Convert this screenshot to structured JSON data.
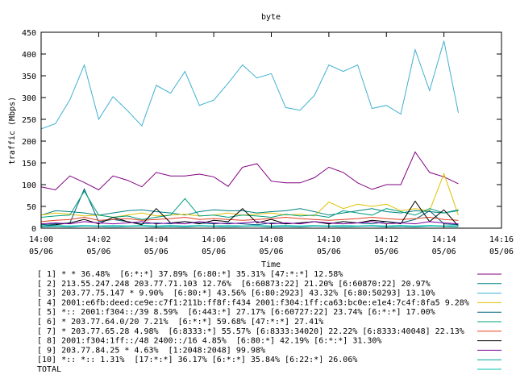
{
  "chart_data": {
    "type": "line",
    "title": "byte",
    "xlabel": "Time",
    "ylabel": "traffic (Mbps)",
    "ylim": [
      0,
      450
    ],
    "yticks": [
      "0",
      "50",
      "100",
      "150",
      "200",
      "250",
      "300",
      "350",
      "400",
      "450"
    ],
    "xlim": [
      "14:00",
      "14:16"
    ],
    "xticks": [
      {
        "time": "14:00",
        "date": "05/06"
      },
      {
        "time": "14:02",
        "date": "05/06"
      },
      {
        "time": "14:04",
        "date": "05/06"
      },
      {
        "time": "14:06",
        "date": "05/06"
      },
      {
        "time": "14:08",
        "date": "05/06"
      },
      {
        "time": "14:10",
        "date": "05/06"
      },
      {
        "time": "14:12",
        "date": "05/06"
      },
      {
        "time": "14:14",
        "date": "05/06"
      },
      {
        "time": "14:16",
        "date": "05/06"
      }
    ],
    "grid": false,
    "legend_position": "bottom",
    "x": [
      "14:00:00",
      "14:00:30",
      "14:01:00",
      "14:01:30",
      "14:02:00",
      "14:02:30",
      "14:03:00",
      "14:03:30",
      "14:04:00",
      "14:04:30",
      "14:05:00",
      "14:05:30",
      "14:06:00",
      "14:06:30",
      "14:07:00",
      "14:07:30",
      "14:08:00",
      "14:08:30",
      "14:09:00",
      "14:09:30",
      "14:10:00",
      "14:10:30",
      "14:11:00",
      "14:11:30",
      "14:12:00",
      "14:12:30",
      "14:13:00",
      "14:13:30",
      "14:14:00",
      "14:14:30"
    ],
    "series": [
      {
        "name": "[ 1] * * 36.48%  [6:*:*] 37.89% [6:80:*] 35.31% [47:*:*] 12.58%",
        "color": "#800080",
        "values": [
          95,
          88,
          120,
          105,
          88,
          120,
          110,
          95,
          128,
          120,
          120,
          124,
          118,
          96,
          140,
          148,
          108,
          104,
          104,
          116,
          140,
          128,
          104,
          89,
          100,
          100,
          175,
          128,
          118,
          102
        ]
      },
      {
        "name": "[ 2] 213.55.247.248 203.77.71.103 12.76%  [6:60873:22] 21.20% [6:60870:22] 20.97%",
        "color": "#008080",
        "values": [
          30,
          40,
          38,
          35,
          30,
          35,
          40,
          42,
          38,
          35,
          30,
          38,
          42,
          40,
          40,
          35,
          38,
          40,
          45,
          38,
          30,
          35,
          40,
          45,
          38,
          35,
          40,
          38,
          35,
          42
        ]
      },
      {
        "name": "[ 3] 203.77.75.147 * 9.90%  [6:80:*] 43.56% [6:80:2923] 43.32% [6:80:50293] 13.10%",
        "color": "#40b0d0",
        "values": [
          228,
          240,
          295,
          375,
          250,
          302,
          270,
          235,
          328,
          310,
          360,
          282,
          294,
          333,
          375,
          345,
          355,
          277,
          271,
          305,
          375,
          360,
          375,
          275,
          282,
          262,
          410,
          316,
          430,
          265
        ]
      },
      {
        "name": "[ 4] 2001:e6fb:deed:ce9e:c7f1:211b:ff8f:f434 2001:f304:1ff:ca63:bc0e:e1e4:7c4f:8fa5 9.28%",
        "color": "#e0c000",
        "values": [
          30,
          35,
          32,
          28,
          30,
          25,
          30,
          35,
          28,
          30,
          32,
          28,
          30,
          35,
          30,
          32,
          35,
          30,
          32,
          28,
          60,
          45,
          55,
          50,
          55,
          40,
          45,
          40,
          125,
          30
        ]
      },
      {
        "name": "[ 5] *:: 2001:f304::/39 8.59%  [6:443:*] 27.17% [6:60727:22] 23.74% [6:*:*] 17.00%",
        "color": "#006080",
        "values": [
          8,
          10,
          12,
          90,
          15,
          20,
          15,
          10,
          12,
          10,
          15,
          12,
          10,
          12,
          10,
          8,
          12,
          10,
          12,
          15,
          10,
          15,
          12,
          10,
          15,
          12,
          20,
          40,
          10,
          8
        ]
      },
      {
        "name": "[ 6] * 203.77.64.0/20 7.21%  [6:*:*] 59.68% [47:*:*] 27.41%",
        "color": "#00a080",
        "values": [
          25,
          28,
          30,
          85,
          30,
          25,
          28,
          20,
          25,
          30,
          68,
          28,
          30,
          25,
          30,
          28,
          25,
          32,
          28,
          30,
          25,
          40,
          35,
          30,
          45,
          38,
          30,
          45,
          35,
          40
        ]
      },
      {
        "name": "[ 7] * 203.77.65.28 4.98%  [6:8333:*] 55.57% [6:8333:34020] 22.22% [6:8333:40048] 22.13%",
        "color": "#e04020",
        "values": [
          15,
          18,
          20,
          25,
          18,
          20,
          22,
          18,
          20,
          22,
          25,
          20,
          22,
          20,
          18,
          20,
          22,
          25,
          22,
          20,
          18,
          20,
          22,
          25,
          22,
          20,
          22,
          25,
          20,
          18
        ]
      },
      {
        "name": "[ 8] 2001:f304:1ff::/48 2400::/16 4.85%  [6:80:*] 42.19% [6:*:*] 31.30%",
        "color": "#000000",
        "values": [
          5,
          8,
          12,
          20,
          10,
          25,
          15,
          8,
          45,
          12,
          15,
          10,
          18,
          15,
          45,
          12,
          20,
          10,
          12,
          15,
          10,
          15,
          12,
          18,
          15,
          10,
          62,
          15,
          42,
          5
        ]
      },
      {
        "name": "[ 9] 203.77.84.25 * 4.63%  [1:2048:2048] 99.98%",
        "color": "#8000a0",
        "values": [
          10,
          12,
          10,
          15,
          12,
          10,
          12,
          15,
          10,
          12,
          10,
          15,
          12,
          10,
          12,
          15,
          10,
          12,
          10,
          15,
          12,
          10,
          12,
          15,
          10,
          12,
          10,
          15,
          12,
          10
        ]
      },
      {
        "name": "[10] *:: *:: 1.31%  [17:*:*] 36.17% [6:*:*] 35.84% [6:22:*] 26.06%",
        "color": "#00a0a0",
        "values": [
          3,
          4,
          3,
          5,
          4,
          3,
          4,
          5,
          3,
          4,
          3,
          5,
          4,
          3,
          4,
          5,
          3,
          4,
          3,
          5,
          4,
          3,
          4,
          5,
          3,
          4,
          3,
          5,
          4,
          3
        ]
      },
      {
        "name": "TOTAL",
        "color": "#00c0b0",
        "values": [
          5,
          6,
          5,
          6,
          5,
          6,
          5,
          6,
          5,
          6,
          5,
          6,
          5,
          6,
          5,
          6,
          5,
          6,
          5,
          6,
          5,
          6,
          5,
          6,
          5,
          6,
          5,
          6,
          5,
          6
        ]
      }
    ]
  }
}
